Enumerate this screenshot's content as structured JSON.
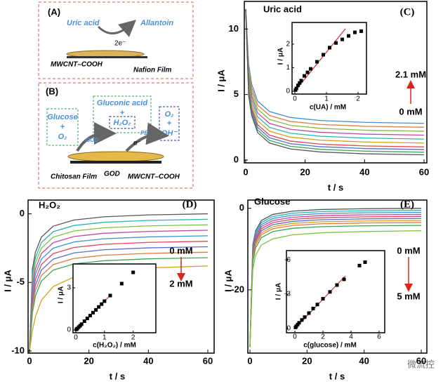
{
  "diagrams": {
    "A": {
      "label": "(A)",
      "substrate": "Uric acid",
      "product": "Allantoin",
      "electrons": "2e⁻",
      "electrode": "MWCNT–COOH",
      "film": "Nafion Film"
    },
    "B": {
      "label": "(B)",
      "glucose": "Glucose",
      "plus_1": "+",
      "oxygen_1": "O₂",
      "gluconic_acid": "Gluconic acid",
      "plus_2": "+",
      "h2o2": "H₂O₂",
      "god_1": "GOD",
      "pb": "PB",
      "electrons": "e⁻",
      "oxygen_2": "O₂",
      "plus_3": "+",
      "hydroxide": "OH⁻",
      "film": "Chitosan Film",
      "god_2": "GOD",
      "electrode": "MWCNT–COOH"
    }
  },
  "chart_data": [
    {
      "type": "line",
      "panel_label": "(C)",
      "title": "Uric acid",
      "title_color": "#d9261c",
      "xlabel": "t / s",
      "ylabel": "I / μA",
      "x": [
        0,
        1,
        2,
        4,
        8,
        15,
        25,
        40,
        60
      ],
      "xlim": [
        0,
        60
      ],
      "xticks": [
        0,
        20,
        40,
        60
      ],
      "ylim": [
        0,
        12
      ],
      "yticks": [
        0,
        5,
        10
      ],
      "series": [
        {
          "color": "#3c8fd8",
          "values": [
            11.5,
            7.3,
            5.8,
            4.5,
            3.7,
            3.25,
            3.02,
            2.88,
            2.8
          ]
        },
        {
          "color": "#e07b39",
          "values": [
            11.5,
            7.0,
            5.5,
            4.2,
            3.4,
            2.95,
            2.72,
            2.58,
            2.5
          ]
        },
        {
          "color": "#7fbf3f",
          "values": [
            11.5,
            6.7,
            5.2,
            3.9,
            3.1,
            2.65,
            2.42,
            2.28,
            2.2
          ]
        },
        {
          "color": "#c04a9e",
          "values": [
            11.5,
            6.4,
            4.9,
            3.6,
            2.8,
            2.35,
            2.12,
            1.98,
            1.9
          ]
        },
        {
          "color": "#2bb3b3",
          "values": [
            11.5,
            6.1,
            4.6,
            3.3,
            2.5,
            2.05,
            1.82,
            1.68,
            1.6
          ]
        },
        {
          "color": "#d4a017",
          "values": [
            11.5,
            5.8,
            4.3,
            3.0,
            2.2,
            1.75,
            1.52,
            1.38,
            1.3
          ]
        },
        {
          "color": "#e0475b",
          "values": [
            11.5,
            5.5,
            4.0,
            2.7,
            1.9,
            1.45,
            1.22,
            1.08,
            1.0
          ]
        },
        {
          "color": "#5a6bd0",
          "values": [
            11.5,
            5.3,
            3.8,
            2.5,
            1.7,
            1.25,
            1.02,
            0.88,
            0.8
          ]
        },
        {
          "color": "#3aa655",
          "values": [
            11.5,
            5.1,
            3.6,
            2.3,
            1.5,
            1.05,
            0.82,
            0.68,
            0.6
          ]
        },
        {
          "color": "#555555",
          "values": [
            11.5,
            4.9,
            3.4,
            2.1,
            1.3,
            0.85,
            0.62,
            0.48,
            0.4
          ]
        }
      ],
      "annotations": {
        "top": "2.1 mM",
        "bottom": "0 mM",
        "color": "#d9261c",
        "arrow_direction": "up"
      },
      "inset": {
        "type": "scatter",
        "xlabel": "c(UA) / mM",
        "ylabel": "I / μA",
        "xlim": [
          0,
          2.2
        ],
        "ylim": [
          0,
          2.8
        ],
        "xticks": [
          0,
          1,
          2
        ],
        "yticks": [
          0,
          1,
          2
        ],
        "color": "#000000",
        "x": [
          0.02,
          0.05,
          0.1,
          0.15,
          0.2,
          0.3,
          0.4,
          0.5,
          0.7,
          0.9,
          1.1,
          1.3,
          1.5,
          1.7,
          1.9,
          2.1
        ],
        "y": [
          0.05,
          0.12,
          0.25,
          0.35,
          0.45,
          0.65,
          0.8,
          0.95,
          1.25,
          1.55,
          1.85,
          2.05,
          2.2,
          2.35,
          2.5,
          2.55
        ],
        "fit": {
          "color": "#e0262a",
          "x": [
            0,
            1.6
          ],
          "y": [
            0,
            2.65
          ]
        }
      }
    },
    {
      "type": "line",
      "panel_label": "(D)",
      "title": "H₂O₂",
      "title_color": "#7030a0",
      "xlabel": "t / s",
      "ylabel": "I / μA",
      "x": [
        0,
        1,
        2,
        4,
        8,
        15,
        25,
        40,
        60
      ],
      "xlim": [
        0,
        60
      ],
      "xticks": [
        0,
        20,
        40,
        60
      ],
      "ylim": [
        -10,
        0.9
      ],
      "yticks": [
        -10,
        -5,
        0
      ],
      "series": [
        {
          "color": "#555555",
          "values": [
            -10,
            -4,
            -2.8,
            -1.7,
            -0.9,
            -0.45,
            -0.22,
            -0.08,
            0
          ]
        },
        {
          "color": "#2bb3b3",
          "values": [
            -10,
            -4.4,
            -3.2,
            -2.1,
            -1.3,
            -0.85,
            -0.62,
            -0.48,
            -0.4
          ]
        },
        {
          "color": "#7fbf3f",
          "values": [
            -10,
            -4.8,
            -3.6,
            -2.5,
            -1.7,
            -1.25,
            -1.02,
            -0.88,
            -0.8
          ]
        },
        {
          "color": "#c04a9e",
          "values": [
            -10,
            -5.2,
            -4.0,
            -2.9,
            -2.1,
            -1.65,
            -1.42,
            -1.28,
            -1.2
          ]
        },
        {
          "color": "#3c8fd8",
          "values": [
            -10,
            -5.6,
            -4.4,
            -3.3,
            -2.5,
            -2.05,
            -1.82,
            -1.68,
            -1.6
          ]
        },
        {
          "color": "#e0475b",
          "values": [
            -10,
            -6.0,
            -4.8,
            -3.7,
            -2.9,
            -2.45,
            -2.22,
            -2.08,
            -2.0
          ]
        },
        {
          "color": "#5a6bd0",
          "values": [
            -10,
            -6.4,
            -5.2,
            -4.1,
            -3.3,
            -2.85,
            -2.62,
            -2.48,
            -2.4
          ]
        },
        {
          "color": "#e07b39",
          "values": [
            -10,
            -6.8,
            -5.6,
            -4.5,
            -3.7,
            -3.25,
            -3.02,
            -2.88,
            -2.8
          ]
        },
        {
          "color": "#3aa655",
          "values": [
            -10,
            -7.2,
            -6.0,
            -4.9,
            -4.1,
            -3.65,
            -3.42,
            -3.28,
            -3.2
          ]
        },
        {
          "color": "#d4a017",
          "values": [
            -10,
            -8.5,
            -7.5,
            -6.3,
            -5.3,
            -4.6,
            -4.2,
            -3.95,
            -3.8
          ]
        }
      ],
      "annotations": {
        "top": "0 mM",
        "bottom": "2 mM",
        "color": "#d9261c",
        "arrow_direction": "down"
      },
      "inset": {
        "type": "scatter",
        "xlabel": "c(H₂O₂) / mM",
        "ylabel": "I / μA",
        "xlim": [
          0,
          2.4
        ],
        "ylim": [
          0,
          4.5
        ],
        "xticks": [
          0,
          1,
          2
        ],
        "yticks": [
          0,
          3
        ],
        "color": "#000000",
        "x": [
          0.02,
          0.05,
          0.1,
          0.15,
          0.2,
          0.3,
          0.4,
          0.5,
          0.6,
          0.7,
          0.8,
          0.9,
          1.0,
          1.2,
          1.6,
          2.0
        ],
        "y": [
          0.04,
          0.1,
          0.2,
          0.3,
          0.41,
          0.62,
          0.82,
          1.02,
          1.23,
          1.43,
          1.64,
          1.84,
          2.05,
          2.45,
          3.3,
          4.1
        ],
        "fit": {
          "color": "#e0262a",
          "x": [
            0,
            1.2
          ],
          "y": [
            0,
            2.46
          ]
        }
      }
    },
    {
      "type": "line",
      "panel_label": "(E)",
      "title": "Glucose",
      "title_color": "#1f3a93",
      "xlabel": "t / s",
      "ylabel": "I / μA",
      "x": [
        0,
        1,
        2,
        4,
        8,
        15,
        25,
        40,
        60
      ],
      "xlim": [
        0,
        60
      ],
      "xticks": [
        0,
        20,
        40,
        60
      ],
      "ylim": [
        -35,
        1.5
      ],
      "yticks": [
        -20,
        0
      ],
      "series": [
        {
          "color": "#555555",
          "values": [
            -34,
            -9,
            -5.5,
            -3,
            -1.5,
            -0.7,
            -0.3,
            -0.1,
            0
          ]
        },
        {
          "color": "#2bb3b3",
          "values": [
            -34,
            -9.5,
            -6,
            -3.5,
            -2,
            -1.2,
            -0.8,
            -0.6,
            -0.5
          ]
        },
        {
          "color": "#3c8fd8",
          "values": [
            -34,
            -10,
            -6.5,
            -4,
            -2.5,
            -1.7,
            -1.3,
            -1.1,
            -1
          ]
        },
        {
          "color": "#c04a9e",
          "values": [
            -34,
            -10.5,
            -7,
            -4.5,
            -3,
            -2.2,
            -1.8,
            -1.6,
            -1.5
          ]
        },
        {
          "color": "#e0475b",
          "values": [
            -34,
            -11,
            -7.5,
            -5,
            -3.5,
            -2.7,
            -2.3,
            -2.1,
            -2
          ]
        },
        {
          "color": "#5a6bd0",
          "values": [
            -34,
            -11.5,
            -8,
            -5.5,
            -4,
            -3.2,
            -2.8,
            -2.6,
            -2.5
          ]
        },
        {
          "color": "#d4a017",
          "values": [
            -34,
            -12,
            -8.5,
            -6,
            -4.5,
            -3.7,
            -3.3,
            -3.1,
            -3
          ]
        },
        {
          "color": "#e07b39",
          "values": [
            -34,
            -12.5,
            -9,
            -6.5,
            -5,
            -4.2,
            -3.8,
            -3.6,
            -3.5
          ]
        },
        {
          "color": "#3aa655",
          "values": [
            -34,
            -13.2,
            -9.7,
            -7.2,
            -5.7,
            -4.9,
            -4.5,
            -4.3,
            -4.2
          ]
        },
        {
          "color": "#7fbf3f",
          "values": [
            -34,
            -15,
            -11.5,
            -9,
            -7.5,
            -6.5,
            -6,
            -5.7,
            -5.5
          ]
        }
      ],
      "annotations": {
        "top": "0 mM",
        "bottom": "5 mM",
        "color": "#d9261c",
        "arrow_direction": "down"
      },
      "inset": {
        "type": "scatter",
        "xlabel": "c(glucose) / mM",
        "ylabel": "I / μA",
        "xlim": [
          0,
          6
        ],
        "ylim": [
          0,
          -6.5
        ],
        "xticks": [
          0,
          2,
          4,
          6
        ],
        "yticks": [
          0,
          -3,
          -6
        ],
        "color": "#000000",
        "x": [
          0.05,
          0.1,
          0.2,
          0.3,
          0.5,
          0.7,
          1.0,
          1.3,
          1.6,
          2.0,
          2.5,
          3.0,
          3.5,
          4.6,
          5.0
        ],
        "y": [
          -0.1,
          -0.2,
          -0.35,
          -0.5,
          -0.75,
          -1.0,
          -1.35,
          -1.75,
          -2.1,
          -2.6,
          -3.2,
          -3.8,
          -4.3,
          -5.5,
          -5.8
        ],
        "fit": {
          "color": "#e0262a",
          "x": [
            0,
            3.6
          ],
          "y": [
            0,
            -4.6
          ]
        }
      }
    }
  ],
  "watermark": "微流控"
}
